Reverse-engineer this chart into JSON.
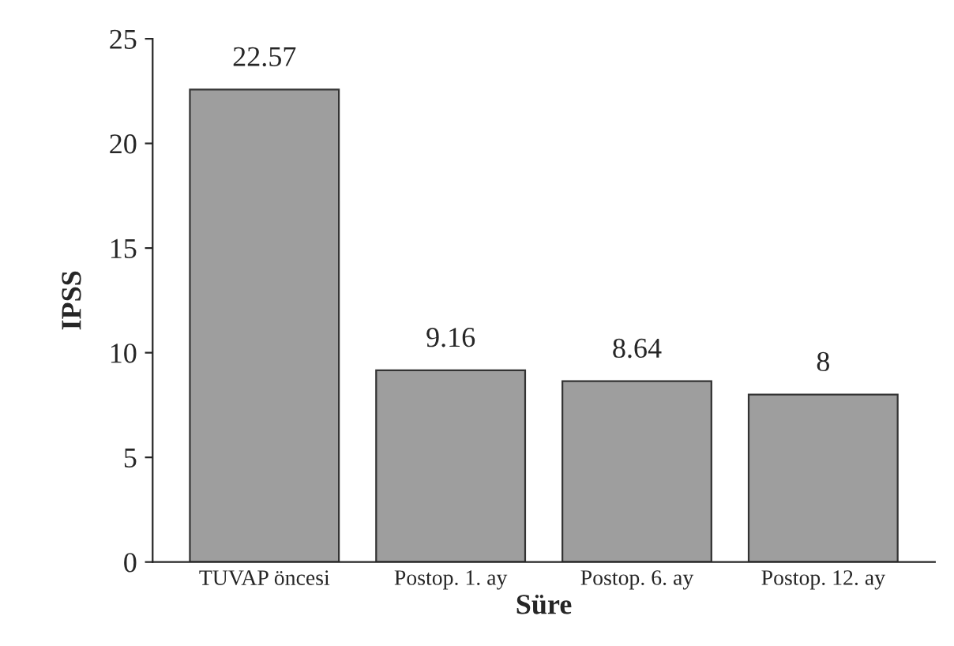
{
  "chart_data": {
    "type": "bar",
    "xlabel": "Süre",
    "ylabel": "IPSS",
    "categories": [
      "TUVAP öncesi",
      "Postop. 1. ay",
      "Postop. 6. ay",
      "Postop. 12. ay"
    ],
    "values": [
      22.57,
      9.16,
      8.64,
      8
    ],
    "color": "#9e9e9e",
    "ylim": [
      0,
      25
    ],
    "yticks": [
      0,
      5,
      10,
      15,
      20,
      25
    ],
    "data_labels": true,
    "grid": false,
    "legend": false
  }
}
